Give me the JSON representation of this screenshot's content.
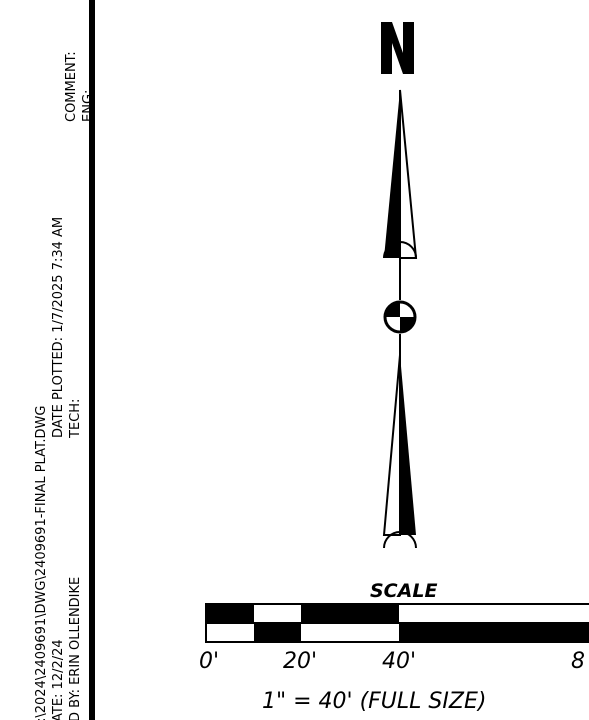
{
  "title_block": {
    "file_line": ":\\2024\\2409691\\DWG\\2409691-FINAL PLAT.DWG",
    "date_line": "ATE: 12/2/24",
    "plotted_line": "DATE PLOTTED: 1/7/2025 7:34 AM",
    "drawn_by_line": "D BY: ERIN OLLENDIKE",
    "tech_line": "TECH:",
    "comment_label": "COMMENT:",
    "eng_label": "ENG:"
  },
  "north_arrow": {
    "letter": "N"
  },
  "scale_bar": {
    "label": "SCALE",
    "ticks": [
      "0'",
      "20'",
      "40'",
      "8"
    ],
    "ratio_text": "1\" = 40' (FULL SIZE)"
  }
}
